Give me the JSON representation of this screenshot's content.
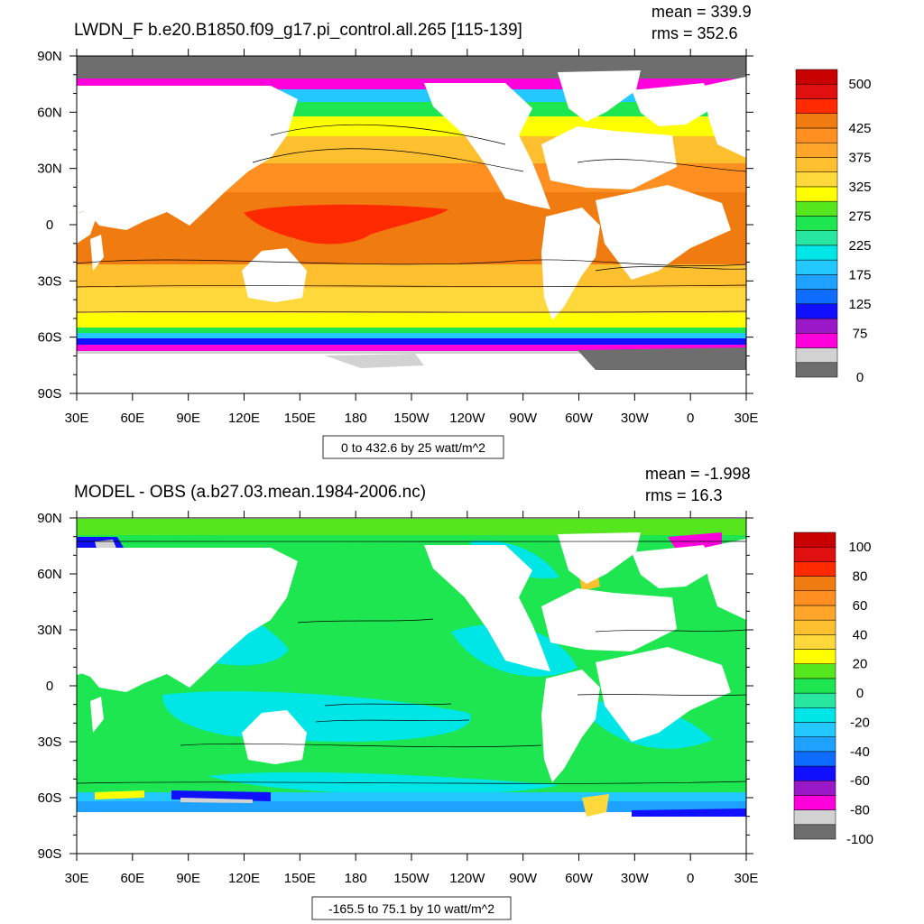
{
  "chart_data": [
    {
      "type": "heatmap",
      "title": "LWDN_F b.e20.B1850.f09_g17.pi_control.all.265 [115-139]",
      "stats": {
        "mean_label": "mean = 339.9",
        "rms_label": "rms = 352.6"
      },
      "x_ticks": [
        "30E",
        "60E",
        "90E",
        "120E",
        "150E",
        "180",
        "150W",
        "120W",
        "90W",
        "60W",
        "30W",
        "0",
        "30E"
      ],
      "y_ticks": [
        "90N",
        "60N",
        "30N",
        "0",
        "30S",
        "60S",
        "90S"
      ],
      "xlim": [
        30,
        390
      ],
      "ylim": [
        -90,
        90
      ],
      "range_label": "0 to 432.6 by 25 watt/m^2",
      "colorbar": {
        "colors": [
          "#6e6e6e",
          "#d2d2d2",
          "#ff00dc",
          "#9b18c8",
          "#1010ff",
          "#0e6cff",
          "#1fa1ff",
          "#22c8ff",
          "#00e6e6",
          "#28e6a0",
          "#1ee650",
          "#55e61e",
          "#ffff00",
          "#ffd83c",
          "#ffc030",
          "#ffa52a",
          "#ff8f20",
          "#f07b10",
          "#ff2a00",
          "#e01010",
          "#c80000"
        ],
        "labels": [
          "0",
          "75",
          "125",
          "175",
          "225",
          "275",
          "325",
          "375",
          "425",
          "500"
        ],
        "label_levels": [
          0,
          3,
          5,
          7,
          9,
          11,
          13,
          15,
          17,
          20
        ]
      }
    },
    {
      "type": "heatmap",
      "title": "MODEL - OBS (a.b27.03.mean.1984-2006.nc)",
      "stats": {
        "mean_label": "mean = -1.998",
        "rms_label": "rms = 16.3"
      },
      "x_ticks": [
        "30E",
        "60E",
        "90E",
        "120E",
        "150E",
        "180",
        "150W",
        "120W",
        "90W",
        "60W",
        "30W",
        "0",
        "30E"
      ],
      "y_ticks": [
        "90N",
        "60N",
        "30N",
        "0",
        "30S",
        "60S",
        "90S"
      ],
      "xlim": [
        30,
        390
      ],
      "ylim": [
        -90,
        90
      ],
      "range_label": "-165.5 to 75.1 by 10 watt/m^2",
      "colorbar": {
        "colors": [
          "#6e6e6e",
          "#d2d2d2",
          "#ff00dc",
          "#9b18c8",
          "#1010ff",
          "#0e6cff",
          "#1fa1ff",
          "#22c8ff",
          "#00e6e6",
          "#28e6a0",
          "#1ee650",
          "#55e61e",
          "#ffff00",
          "#ffd83c",
          "#ffc030",
          "#ffa52a",
          "#ff8f20",
          "#f07b10",
          "#ff2a00",
          "#e01010",
          "#c80000"
        ],
        "labels": [
          "-100",
          "-80",
          "-60",
          "-40",
          "-20",
          "0",
          "20",
          "40",
          "60",
          "80",
          "100"
        ],
        "label_levels": [
          0,
          2,
          4,
          6,
          8,
          10,
          12,
          14,
          16,
          18,
          20
        ]
      }
    }
  ]
}
